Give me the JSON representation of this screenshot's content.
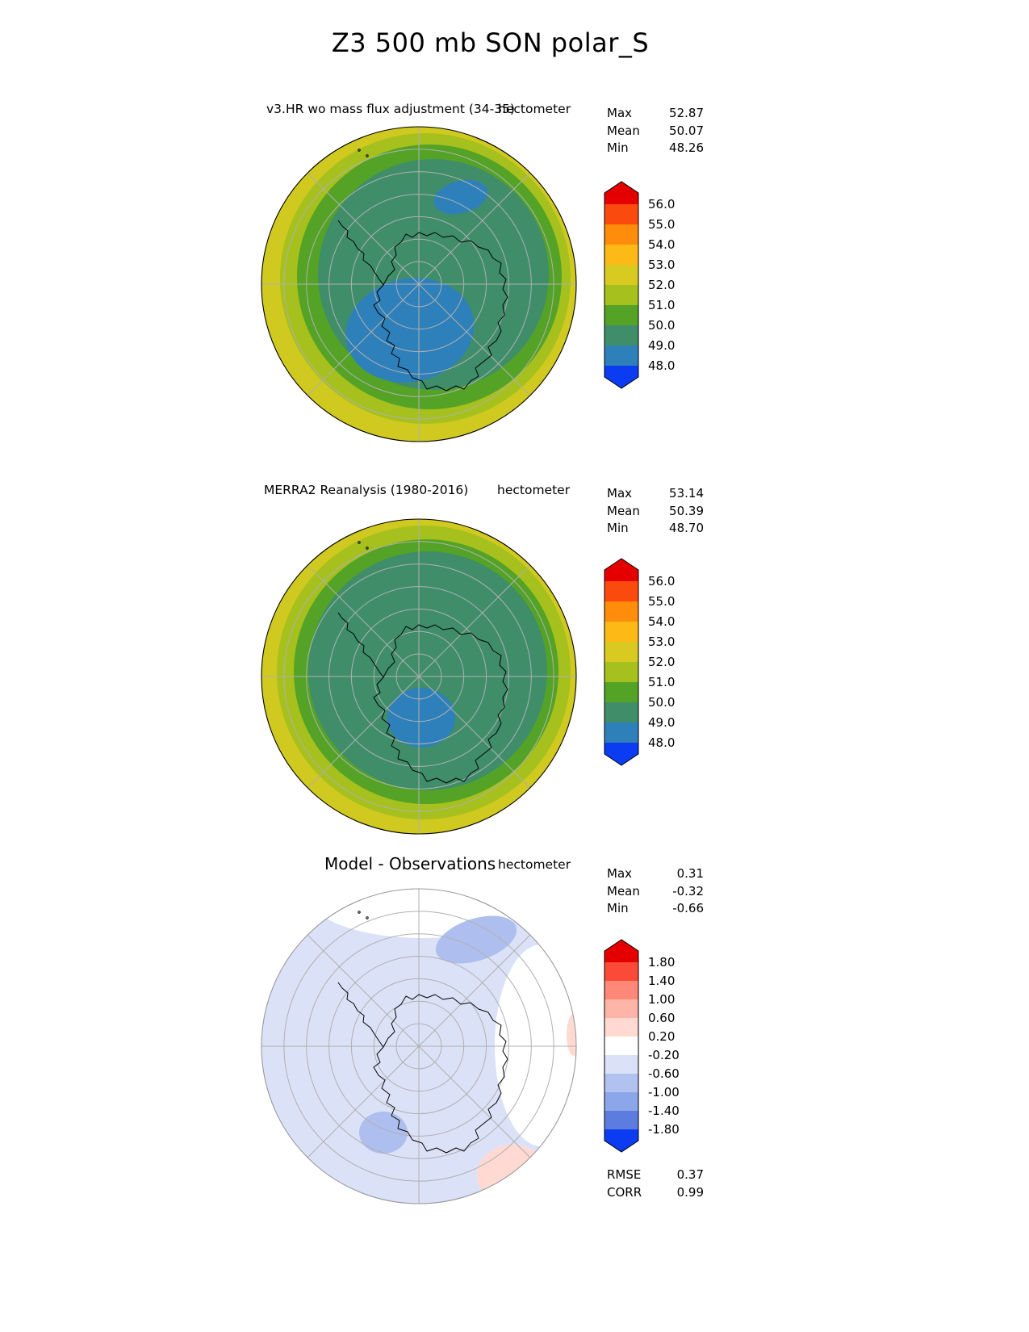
{
  "page_title": "Z3 500 mb SON polar_S",
  "panels": [
    {
      "title": "v3.HR wo mass flux adjustment (34-35)",
      "units": "hectometer",
      "stats": {
        "rows": [
          {
            "label": "Max",
            "value": "52.87"
          },
          {
            "label": "Mean",
            "value": "50.07"
          },
          {
            "label": "Min",
            "value": "48.26"
          }
        ]
      },
      "colorbar": {
        "tick_labels": [
          "56.0",
          "55.0",
          "54.0",
          "53.0",
          "52.0",
          "51.0",
          "50.0",
          "49.0",
          "48.0"
        ],
        "colors": [
          "#e50000",
          "#fb4a0d",
          "#ff8c0a",
          "#fdb915",
          "#d8ca20",
          "#a6c01d",
          "#54a326",
          "#3f8e69",
          "#2e80ba",
          "#0b3cf2"
        ]
      },
      "map_colors": {
        "band_52_53": "#cfc920",
        "band_51_52": "#a6c01d",
        "band_50_51": "#54a326",
        "band_49_50": "#3f8e69",
        "band_48_49": "#2e80ba"
      }
    },
    {
      "title": "MERRA2 Reanalysis (1980-2016)",
      "units": "hectometer",
      "stats": {
        "rows": [
          {
            "label": "Max",
            "value": "53.14"
          },
          {
            "label": "Mean",
            "value": "50.39"
          },
          {
            "label": "Min",
            "value": "48.70"
          }
        ]
      },
      "colorbar": {
        "tick_labels": [
          "56.0",
          "55.0",
          "54.0",
          "53.0",
          "52.0",
          "51.0",
          "50.0",
          "49.0",
          "48.0"
        ],
        "colors": [
          "#e50000",
          "#fb4a0d",
          "#ff8c0a",
          "#fdb915",
          "#d8ca20",
          "#a6c01d",
          "#54a326",
          "#3f8e69",
          "#2e80ba",
          "#0b3cf2"
        ]
      },
      "map_colors": {
        "band_52_53": "#cfc920",
        "band_51_52": "#a6c01d",
        "band_50_51": "#54a326",
        "band_49_50": "#3f8e69",
        "band_48_49": "#2e80ba"
      }
    },
    {
      "title": "Model - Observations",
      "units": "hectometer",
      "stats": {
        "rows": [
          {
            "label": "Max",
            "value": "0.31"
          },
          {
            "label": "Mean",
            "value": "-0.32"
          },
          {
            "label": "Min",
            "value": "-0.66"
          }
        ]
      },
      "extra": {
        "rows": [
          {
            "label": "RMSE",
            "value": "0.37"
          },
          {
            "label": "CORR",
            "value": "0.99"
          }
        ]
      },
      "colorbar": {
        "tick_labels": [
          "1.80",
          "1.40",
          "1.00",
          "0.60",
          "0.20",
          "-0.20",
          "-0.60",
          "-1.00",
          "-1.40",
          "-1.80"
        ],
        "colors": [
          "#e50000",
          "#fb4b38",
          "#ff8878",
          "#ffb4a8",
          "#ffd9d2",
          "#ffffff",
          "#dbe2f8",
          "#b2c2f0",
          "#8ca6ea",
          "#5d7ce0",
          "#0b3cf2"
        ]
      },
      "map_colors": {
        "band_neg02_pos02": "#ffffff",
        "band_neg06_neg02": "#dbe2f8",
        "band_neg10_neg06": "#aebfef",
        "band_pos02_pos06": "#ffd9d2"
      }
    }
  ],
  "chart_data": [
    {
      "type": "heatmap",
      "subtype": "polar_contour_map",
      "region": "polar_S",
      "variable": "Z3 500 mb",
      "season": "SON",
      "title": "v3.HR wo mass flux adjustment (34-35)",
      "units": "hectometer",
      "contour_levels": [
        48.0,
        49.0,
        50.0,
        51.0,
        52.0,
        53.0,
        54.0,
        55.0,
        56.0
      ],
      "stats": {
        "max": 52.87,
        "mean": 50.07,
        "min": 48.26
      },
      "legend_position": "right",
      "colorbar_colors_top_to_bottom": [
        "#e50000",
        "#fb4a0d",
        "#ff8c0a",
        "#fdb915",
        "#d8ca20",
        "#a6c01d",
        "#54a326",
        "#3f8e69",
        "#2e80ba",
        "#0b3cf2"
      ]
    },
    {
      "type": "heatmap",
      "subtype": "polar_contour_map",
      "region": "polar_S",
      "variable": "Z3 500 mb",
      "season": "SON",
      "title": "MERRA2 Reanalysis (1980-2016)",
      "units": "hectometer",
      "contour_levels": [
        48.0,
        49.0,
        50.0,
        51.0,
        52.0,
        53.0,
        54.0,
        55.0,
        56.0
      ],
      "stats": {
        "max": 53.14,
        "mean": 50.39,
        "min": 48.7
      },
      "legend_position": "right",
      "colorbar_colors_top_to_bottom": [
        "#e50000",
        "#fb4a0d",
        "#ff8c0a",
        "#fdb915",
        "#d8ca20",
        "#a6c01d",
        "#54a326",
        "#3f8e69",
        "#2e80ba",
        "#0b3cf2"
      ]
    },
    {
      "type": "heatmap",
      "subtype": "polar_contour_map",
      "region": "polar_S",
      "variable": "Z3 500 mb difference",
      "season": "SON",
      "title": "Model - Observations",
      "units": "hectometer",
      "contour_levels": [
        -1.8,
        -1.4,
        -1.0,
        -0.6,
        -0.2,
        0.2,
        0.6,
        1.0,
        1.4,
        1.8
      ],
      "stats": {
        "max": 0.31,
        "mean": -0.32,
        "min": -0.66,
        "rmse": 0.37,
        "corr": 0.99
      },
      "legend_position": "right",
      "colorbar_colors_top_to_bottom": [
        "#e50000",
        "#fb4b38",
        "#ff8878",
        "#ffb4a8",
        "#ffd9d2",
        "#ffffff",
        "#dbe2f8",
        "#b2c2f0",
        "#8ca6ea",
        "#5d7ce0",
        "#0b3cf2"
      ]
    }
  ]
}
